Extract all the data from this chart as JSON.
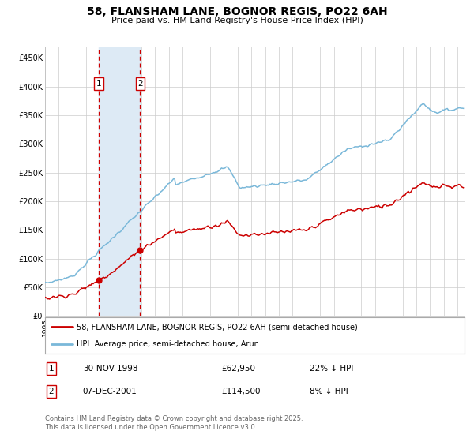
{
  "title": "58, FLANSHAM LANE, BOGNOR REGIS, PO22 6AH",
  "subtitle": "Price paid vs. HM Land Registry's House Price Index (HPI)",
  "legend_line1": "58, FLANSHAM LANE, BOGNOR REGIS, PO22 6AH (semi-detached house)",
  "legend_line2": "HPI: Average price, semi-detached house, Arun",
  "footer": "Contains HM Land Registry data © Crown copyright and database right 2025.\nThis data is licensed under the Open Government Licence v3.0.",
  "purchase1_date": "30-NOV-1998",
  "purchase1_price": 62950,
  "purchase1_label": "22% ↓ HPI",
  "purchase2_date": "07-DEC-2001",
  "purchase2_price": 114500,
  "purchase2_label": "8% ↓ HPI",
  "sale1_year": 1998.917,
  "sale2_year": 2001.917,
  "sale_color": "#cc0000",
  "hpi_color": "#7ab8d9",
  "shade_color": "#ddeaf5",
  "vline_color": "#cc0000",
  "grid_color": "#cccccc",
  "background_color": "#ffffff",
  "ylim": [
    0,
    470000
  ],
  "xlim_start": 1995,
  "xlim_end": 2025.5
}
